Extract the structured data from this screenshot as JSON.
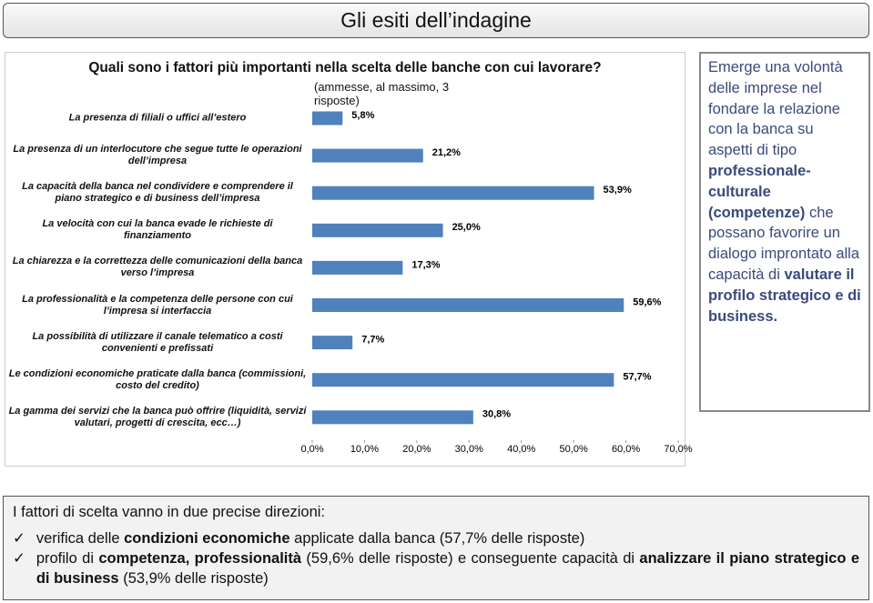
{
  "header": {
    "title": "Gli esiti dell’indagine"
  },
  "chart_data": {
    "type": "hbar",
    "title": "Quali sono i fattori più importanti nella scelta delle banche con cui lavorare?",
    "subtitle": "(ammesse, al massimo, 3 risposte)",
    "categories": [
      "La presenza di filiali o uffici all’estero",
      "La presenza di un interlocutore che segue tutte le operazioni dell’impresa",
      "La capacità della banca nel condividere e comprendere il piano strategico e di business dell’impresa",
      "La velocità con cui la banca evade le richieste di finanziamento",
      "La chiarezza e la correttezza delle comunicazioni della banca verso l’impresa",
      "La professionalità e la competenza delle persone con cui l’impresa si interfaccia",
      "La possibilità di utilizzare il canale telematico a costi convenienti e prefissati",
      "Le condizioni economiche praticate dalla banca (commissioni, costo del credito)",
      "La gamma dei servizi che la banca può offrire (liquidità, servizi valutari, progetti di crescita, ecc…)"
    ],
    "values": [
      5.8,
      21.2,
      53.9,
      25.0,
      17.3,
      59.6,
      7.7,
      57.7,
      30.8
    ],
    "value_labels": [
      "5,8%",
      "21,2%",
      "53,9%",
      "25,0%",
      "17,3%",
      "59,6%",
      "7,7%",
      "57,7%",
      "30,8%"
    ],
    "color": "#4f81bd",
    "xlim": [
      0,
      70
    ],
    "xticks": [
      {
        "value": 0,
        "label": "0,0%"
      },
      {
        "value": 10,
        "label": "10,0%"
      },
      {
        "value": 20,
        "label": "20,0%"
      },
      {
        "value": 30,
        "label": "30,0%"
      },
      {
        "value": 40,
        "label": "40,0%"
      },
      {
        "value": 50,
        "label": "50,0%"
      },
      {
        "value": 60,
        "label": "60,0%"
      },
      {
        "value": 70,
        "label": "70,0%"
      }
    ]
  },
  "sidebar": {
    "parts": [
      "Emerge una volontà delle imprese nel fondare la relazione con la banca su aspetti di tipo ",
      "professionale-culturale (competenze)",
      " che possano favorire un dialogo improntato alla capacità di ",
      "valutare il profilo strategico e di business."
    ]
  },
  "footer": {
    "intro": "I fattori di scelta vanno in due precise direzioni:",
    "bullets": [
      [
        "verifica delle ",
        "condizioni economiche",
        " applicate dalla banca (57,7% delle risposte)"
      ],
      [
        "profilo di ",
        "competenza, professionalità",
        " (59,6% delle risposte) e conseguente capacità di ",
        "analizzare il piano strategico e di business",
        " (53,9% delle risposte)"
      ]
    ]
  }
}
